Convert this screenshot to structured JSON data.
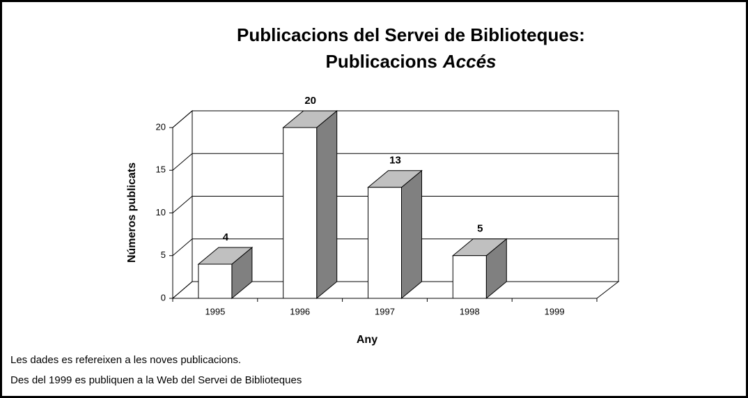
{
  "chart_data": {
    "type": "bar3d",
    "title": [
      "Publicacions del Servei de Biblioteques:",
      "Publicacions",
      "Accés"
    ],
    "ylabel": "Números publicats",
    "xlabel": "Any",
    "categories": [
      "1995",
      "1996",
      "1997",
      "1998",
      "1999"
    ],
    "values": [
      4,
      20,
      13,
      5,
      null
    ],
    "ylim": [
      0,
      20
    ],
    "yticks": [
      0,
      5,
      10,
      15,
      20
    ],
    "grid": true,
    "colors": {
      "front": "#ffffff",
      "side": "#808080",
      "top": "#c0c0c0"
    },
    "notes": [
      "Les dades es refereixen a les noves publicacions.",
      "Des del 1999 es publiquen a la Web del Servei de Biblioteques"
    ]
  }
}
